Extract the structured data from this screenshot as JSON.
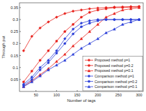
{
  "chart_data": {
    "type": "line",
    "x_label": "Number of tags",
    "y_label": "Through put",
    "x": [
      20,
      40,
      60,
      80,
      100,
      120,
      140,
      160,
      180,
      200,
      220,
      240,
      260,
      280,
      300
    ],
    "xlim": [
      10,
      310
    ],
    "xticks": [
      50,
      100,
      150,
      200,
      250,
      300
    ],
    "ylim": [
      0,
      0.37
    ],
    "yticks": [
      0.05,
      0.1,
      0.15,
      0.2,
      0.25,
      0.3,
      0.35
    ],
    "grid": false,
    "legend": "lower right",
    "series": [
      {
        "name": "Proposed method p=1",
        "color": "#e8221c",
        "marker": "diamond",
        "values": [
          0.17,
          0.23,
          0.265,
          0.29,
          0.31,
          0.325,
          0.335,
          0.34,
          0.345,
          0.348,
          0.35,
          0.352,
          0.353,
          0.354,
          0.355
        ]
      },
      {
        "name": "Proposed method p=0.2",
        "color": "#e8221c",
        "marker": "circle",
        "values": [
          0.04,
          0.085,
          0.13,
          0.17,
          0.21,
          0.25,
          0.28,
          0.31,
          0.33,
          0.34,
          0.345,
          0.35,
          0.35,
          0.352,
          0.353
        ]
      },
      {
        "name": "Proposed method p=0.1",
        "color": "#e8221c",
        "marker": "triangle",
        "values": [
          0.02,
          0.045,
          0.07,
          0.095,
          0.125,
          0.155,
          0.19,
          0.22,
          0.25,
          0.28,
          0.31,
          0.325,
          0.34,
          0.345,
          0.35
        ]
      },
      {
        "name": "Comparison method  p=1",
        "color": "#2b3fd8",
        "marker": "diamond",
        "values": [
          0.03,
          0.06,
          0.1,
          0.13,
          0.17,
          0.22,
          0.26,
          0.285,
          0.295,
          0.3,
          0.3,
          0.3,
          0.3,
          0.3,
          0.3
        ]
      },
      {
        "name": "Comparison method p=0.2",
        "color": "#2b3fd8",
        "marker": "circle",
        "values": [
          0.025,
          0.05,
          0.09,
          0.12,
          0.16,
          0.2,
          0.24,
          0.27,
          0.285,
          0.295,
          0.3,
          0.3,
          0.3,
          0.3,
          0.3
        ]
      },
      {
        "name": "Comparison method p=0.1",
        "color": "#2b3fd8",
        "marker": "triangle",
        "values": [
          0.02,
          0.04,
          0.065,
          0.09,
          0.11,
          0.13,
          0.155,
          0.18,
          0.2,
          0.22,
          0.245,
          0.26,
          0.28,
          0.29,
          0.3
        ]
      }
    ]
  }
}
